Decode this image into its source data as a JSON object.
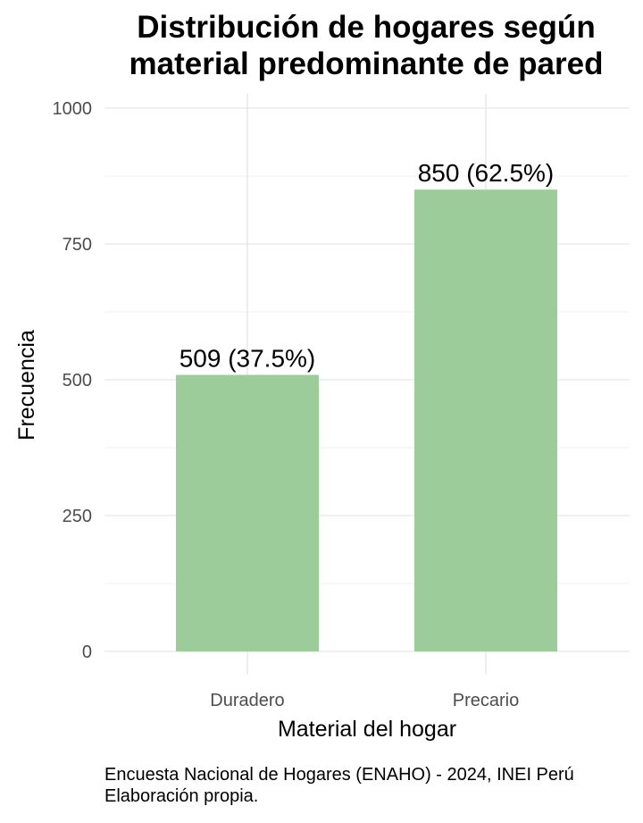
{
  "chart_data": {
    "type": "bar",
    "title": "Distribución de hogares según\nmaterial predominante de pared",
    "xlabel": "Material del hogar",
    "ylabel": "Frecuencia",
    "categories": [
      "Duradero",
      "Precario"
    ],
    "values": [
      509,
      850
    ],
    "data_labels": [
      "509 (37.5%)",
      "850 (62.5%)"
    ],
    "ylim": [
      0,
      1000
    ],
    "yticks": [
      0,
      250,
      500,
      750,
      1000
    ],
    "ytick_labels": [
      "0",
      "250",
      "500",
      "750",
      "1000"
    ],
    "grid": true,
    "legend": "none",
    "bar_color": "#9ccc9a",
    "caption_lines": [
      "Encuesta Nacional de Hogares (ENAHO) - 2024, INEI Perú",
      "Elaboración propia."
    ]
  }
}
